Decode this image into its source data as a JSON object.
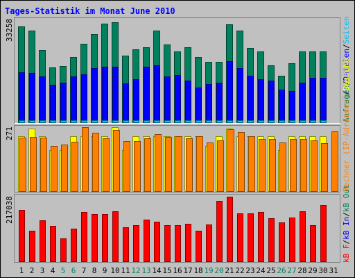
{
  "title": "Tages-Statistik im Monat June 2010",
  "colors": {
    "title": "#0000ff",
    "weekday": "#000000",
    "weekend": "#00805c",
    "background": "#c0c0c0",
    "hits": "#00805c",
    "files": "#0000ff",
    "pages": "#00c0ff",
    "visits": "#ffff00",
    "sites": "#ff8000",
    "kbin": "#ff0000",
    "kbout": "#00805c",
    "kbf": "#ff0000",
    "sep": "#000000"
  },
  "chart_data": [
    {
      "type": "bar",
      "name": "top",
      "ymax_label": "33258",
      "ylim": [
        0,
        33258
      ],
      "legend": [
        {
          "text": "Anfragen",
          "color": "#00805c"
        },
        {
          "text": "/",
          "color": "#000000"
        },
        {
          "text": "Dateien",
          "color": "#0000ff"
        },
        {
          "text": "/",
          "color": "#000000"
        },
        {
          "text": "Seiten",
          "color": "#00c0ff"
        }
      ],
      "categories": [
        "1",
        "2",
        "3",
        "4",
        "5",
        "6",
        "7",
        "8",
        "9",
        "10",
        "11",
        "12",
        "13",
        "14",
        "15",
        "16",
        "17",
        "18",
        "19",
        "20",
        "21",
        "22",
        "23",
        "24",
        "25",
        "26",
        "27",
        "28",
        "29",
        "30",
        "31"
      ],
      "series": [
        {
          "name": "Anfragen",
          "color": "#00805c",
          "values": [
            31800,
            30600,
            24100,
            18200,
            18600,
            21800,
            26200,
            29400,
            32700,
            33200,
            22200,
            24200,
            24900,
            30600,
            25900,
            23500,
            24900,
            21800,
            20200,
            20200,
            32600,
            30600,
            24700,
            23500,
            19000,
            15400,
            19600,
            23500,
            23500,
            23500,
            0
          ]
        },
        {
          "name": "Dateien",
          "color": "#0000ff",
          "values": [
            16600,
            16300,
            15300,
            12500,
            13200,
            15300,
            16000,
            18000,
            18500,
            18400,
            12900,
            14300,
            18400,
            18900,
            15300,
            15600,
            13800,
            11600,
            12700,
            13200,
            20300,
            18000,
            15500,
            14300,
            13800,
            10800,
            10400,
            13200,
            14700,
            14800,
            0
          ]
        },
        {
          "name": "Seiten",
          "color": "#00c0ff",
          "values": [
            700,
            700,
            700,
            700,
            700,
            700,
            700,
            700,
            700,
            700,
            700,
            700,
            700,
            700,
            700,
            700,
            700,
            700,
            700,
            700,
            700,
            700,
            700,
            700,
            700,
            700,
            700,
            700,
            700,
            700,
            0
          ]
        }
      ]
    },
    {
      "type": "bar",
      "name": "middle",
      "ymax_label": "271",
      "ylim": [
        0,
        271
      ],
      "legend": [
        {
          "text": "Rechner (IP-Adressen)",
          "color": "#ff8000"
        },
        {
          "text": "/",
          "color": "#000000"
        },
        {
          "text": "Besuche",
          "color": "#ffff00"
        }
      ],
      "categories": [
        "1",
        "2",
        "3",
        "4",
        "5",
        "6",
        "7",
        "8",
        "9",
        "10",
        "11",
        "12",
        "13",
        "14",
        "15",
        "16",
        "17",
        "18",
        "19",
        "20",
        "21",
        "22",
        "23",
        "24",
        "25",
        "26",
        "27",
        "28",
        "29",
        "30",
        "31"
      ],
      "series": [
        {
          "name": "Besuche",
          "color": "#ffff00",
          "values": [
            232,
            264,
            232,
            174,
            174,
            232,
            232,
            232,
            232,
            271,
            174,
            232,
            232,
            232,
            232,
            232,
            232,
            232,
            190,
            232,
            264,
            232,
            232,
            232,
            232,
            174,
            232,
            232,
            232,
            232,
            0
          ]
        },
        {
          "name": "Rechner",
          "color": "#ff8000",
          "values": [
            228,
            230,
            228,
            190,
            198,
            208,
            271,
            248,
            225,
            258,
            213,
            213,
            224,
            242,
            230,
            232,
            223,
            232,
            207,
            215,
            261,
            249,
            232,
            220,
            220,
            206,
            221,
            222,
            214,
            203,
            253
          ]
        }
      ]
    },
    {
      "type": "bar",
      "name": "bottom",
      "ymax_label": "217038",
      "ylim": [
        0,
        217038
      ],
      "legend": [
        {
          "text": "kB F",
          "color": "#ff0000"
        },
        {
          "text": "/",
          "color": "#000000"
        },
        {
          "text": "kB In",
          "color": "#0000ff"
        },
        {
          "text": "/",
          "color": "#000000"
        },
        {
          "text": "kB Out",
          "color": "#00805c"
        }
      ],
      "categories": [
        "1",
        "2",
        "3",
        "4",
        "5",
        "6",
        "7",
        "8",
        "9",
        "10",
        "11",
        "12",
        "13",
        "14",
        "15",
        "16",
        "17",
        "18",
        "19",
        "20",
        "21",
        "22",
        "23",
        "24",
        "25",
        "26",
        "27",
        "28",
        "29",
        "30",
        "31"
      ],
      "series": [
        {
          "name": "kB F",
          "color": "#ff0000",
          "values": [
            172000,
            103000,
            138000,
            119000,
            76000,
            109000,
            166000,
            158000,
            158000,
            169000,
            115000,
            121000,
            141000,
            133000,
            121000,
            121000,
            127000,
            103000,
            123000,
            203000,
            217038,
            160000,
            160000,
            166000,
            144000,
            130000,
            146000,
            169000,
            121000,
            190000,
            0
          ]
        }
      ]
    }
  ],
  "day_labels": [
    {
      "text": "1",
      "weekend": false
    },
    {
      "text": "2",
      "weekend": false
    },
    {
      "text": "3",
      "weekend": false
    },
    {
      "text": "4",
      "weekend": false
    },
    {
      "text": "5",
      "weekend": true
    },
    {
      "text": "6",
      "weekend": true
    },
    {
      "text": "7",
      "weekend": false
    },
    {
      "text": "8",
      "weekend": false
    },
    {
      "text": "9",
      "weekend": false
    },
    {
      "text": "10",
      "weekend": false
    },
    {
      "text": "11",
      "weekend": false
    },
    {
      "text": "12",
      "weekend": true
    },
    {
      "text": "13",
      "weekend": true
    },
    {
      "text": "14",
      "weekend": false
    },
    {
      "text": "15",
      "weekend": false
    },
    {
      "text": "16",
      "weekend": false
    },
    {
      "text": "17",
      "weekend": false
    },
    {
      "text": "18",
      "weekend": false
    },
    {
      "text": "19",
      "weekend": true
    },
    {
      "text": "20",
      "weekend": true
    },
    {
      "text": "21",
      "weekend": false
    },
    {
      "text": "22",
      "weekend": false
    },
    {
      "text": "23",
      "weekend": false
    },
    {
      "text": "24",
      "weekend": false
    },
    {
      "text": "25",
      "weekend": false
    },
    {
      "text": "26",
      "weekend": true
    },
    {
      "text": "27",
      "weekend": true
    },
    {
      "text": "28",
      "weekend": false
    },
    {
      "text": "29",
      "weekend": false
    },
    {
      "text": "30",
      "weekend": false
    },
    {
      "text": "31",
      "weekend": false
    }
  ]
}
